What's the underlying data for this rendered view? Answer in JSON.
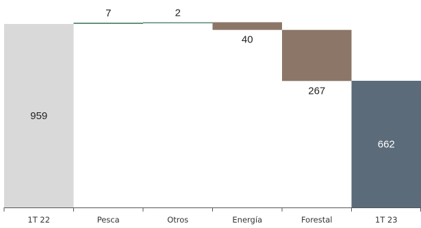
{
  "chart_data": {
    "type": "bar",
    "subtype": "waterfall",
    "categories": [
      "1T 22",
      "Pesca",
      "Otros",
      "Energía",
      "Forestal",
      "1T 23"
    ],
    "values": [
      959,
      7,
      2,
      -40,
      -267,
      662
    ],
    "value_labels": [
      "959",
      "7",
      "2",
      "40",
      "267",
      "662"
    ],
    "kinds": [
      "total",
      "delta",
      "delta",
      "delta",
      "delta",
      "total"
    ],
    "colors": {
      "start_total": "#d9d9d9",
      "increase": "#5e8f79",
      "decrease": "#8b7668",
      "end_total": "#5b6b7a",
      "axis": "#555555"
    },
    "grid": false,
    "legend": "none",
    "ylim": [
      0,
      959
    ]
  }
}
